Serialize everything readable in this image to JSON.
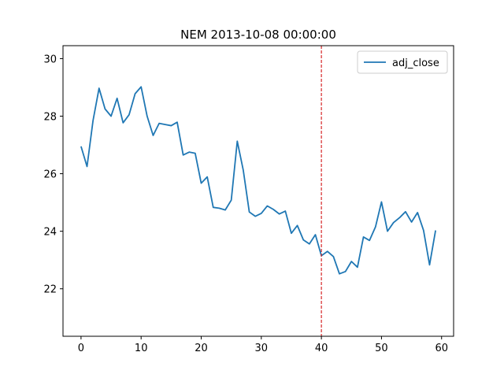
{
  "chart_data": {
    "type": "line",
    "title": "NEM 2013-10-08 00:00:00",
    "xlabel": "",
    "ylabel": "",
    "xlim": [
      -3,
      62
    ],
    "ylim": [
      20.35,
      30.45
    ],
    "xticks": [
      0,
      10,
      20,
      30,
      40,
      50,
      60
    ],
    "yticks": [
      22,
      24,
      26,
      28,
      30
    ],
    "grid": false,
    "legend": {
      "position": "top-right"
    },
    "series": [
      {
        "name": "adj_close",
        "color": "#1f77b4",
        "x": [
          0,
          1,
          2,
          3,
          4,
          5,
          6,
          7,
          8,
          9,
          10,
          11,
          12,
          13,
          14,
          15,
          16,
          17,
          18,
          19,
          20,
          21,
          22,
          23,
          24,
          25,
          26,
          27,
          28,
          29,
          30,
          31,
          32,
          33,
          34,
          35,
          36,
          37,
          38,
          39,
          40,
          41,
          42,
          43,
          44,
          45,
          46,
          47,
          48,
          49,
          50,
          51,
          52,
          53,
          54,
          55,
          56,
          57,
          58,
          59
        ],
        "values": [
          26.95,
          26.25,
          27.85,
          28.97,
          28.25,
          28.0,
          28.62,
          27.77,
          28.05,
          28.78,
          29.02,
          28.0,
          27.33,
          27.75,
          27.71,
          27.67,
          27.79,
          26.65,
          26.75,
          26.71,
          25.67,
          25.89,
          24.83,
          24.8,
          24.74,
          25.08,
          27.13,
          26.12,
          24.67,
          24.52,
          24.62,
          24.88,
          24.76,
          24.6,
          24.7,
          23.93,
          24.2,
          23.7,
          23.56,
          23.88,
          23.15,
          23.3,
          23.12,
          22.52,
          22.6,
          22.95,
          22.75,
          23.8,
          23.68,
          24.15,
          25.02,
          24.0,
          24.3,
          24.47,
          24.68,
          24.32,
          24.65,
          24.03,
          22.83,
          24.03
        ]
      }
    ],
    "annotations": [
      {
        "type": "vline",
        "x": 40,
        "color": "#d62728",
        "style": "dashed"
      }
    ]
  }
}
